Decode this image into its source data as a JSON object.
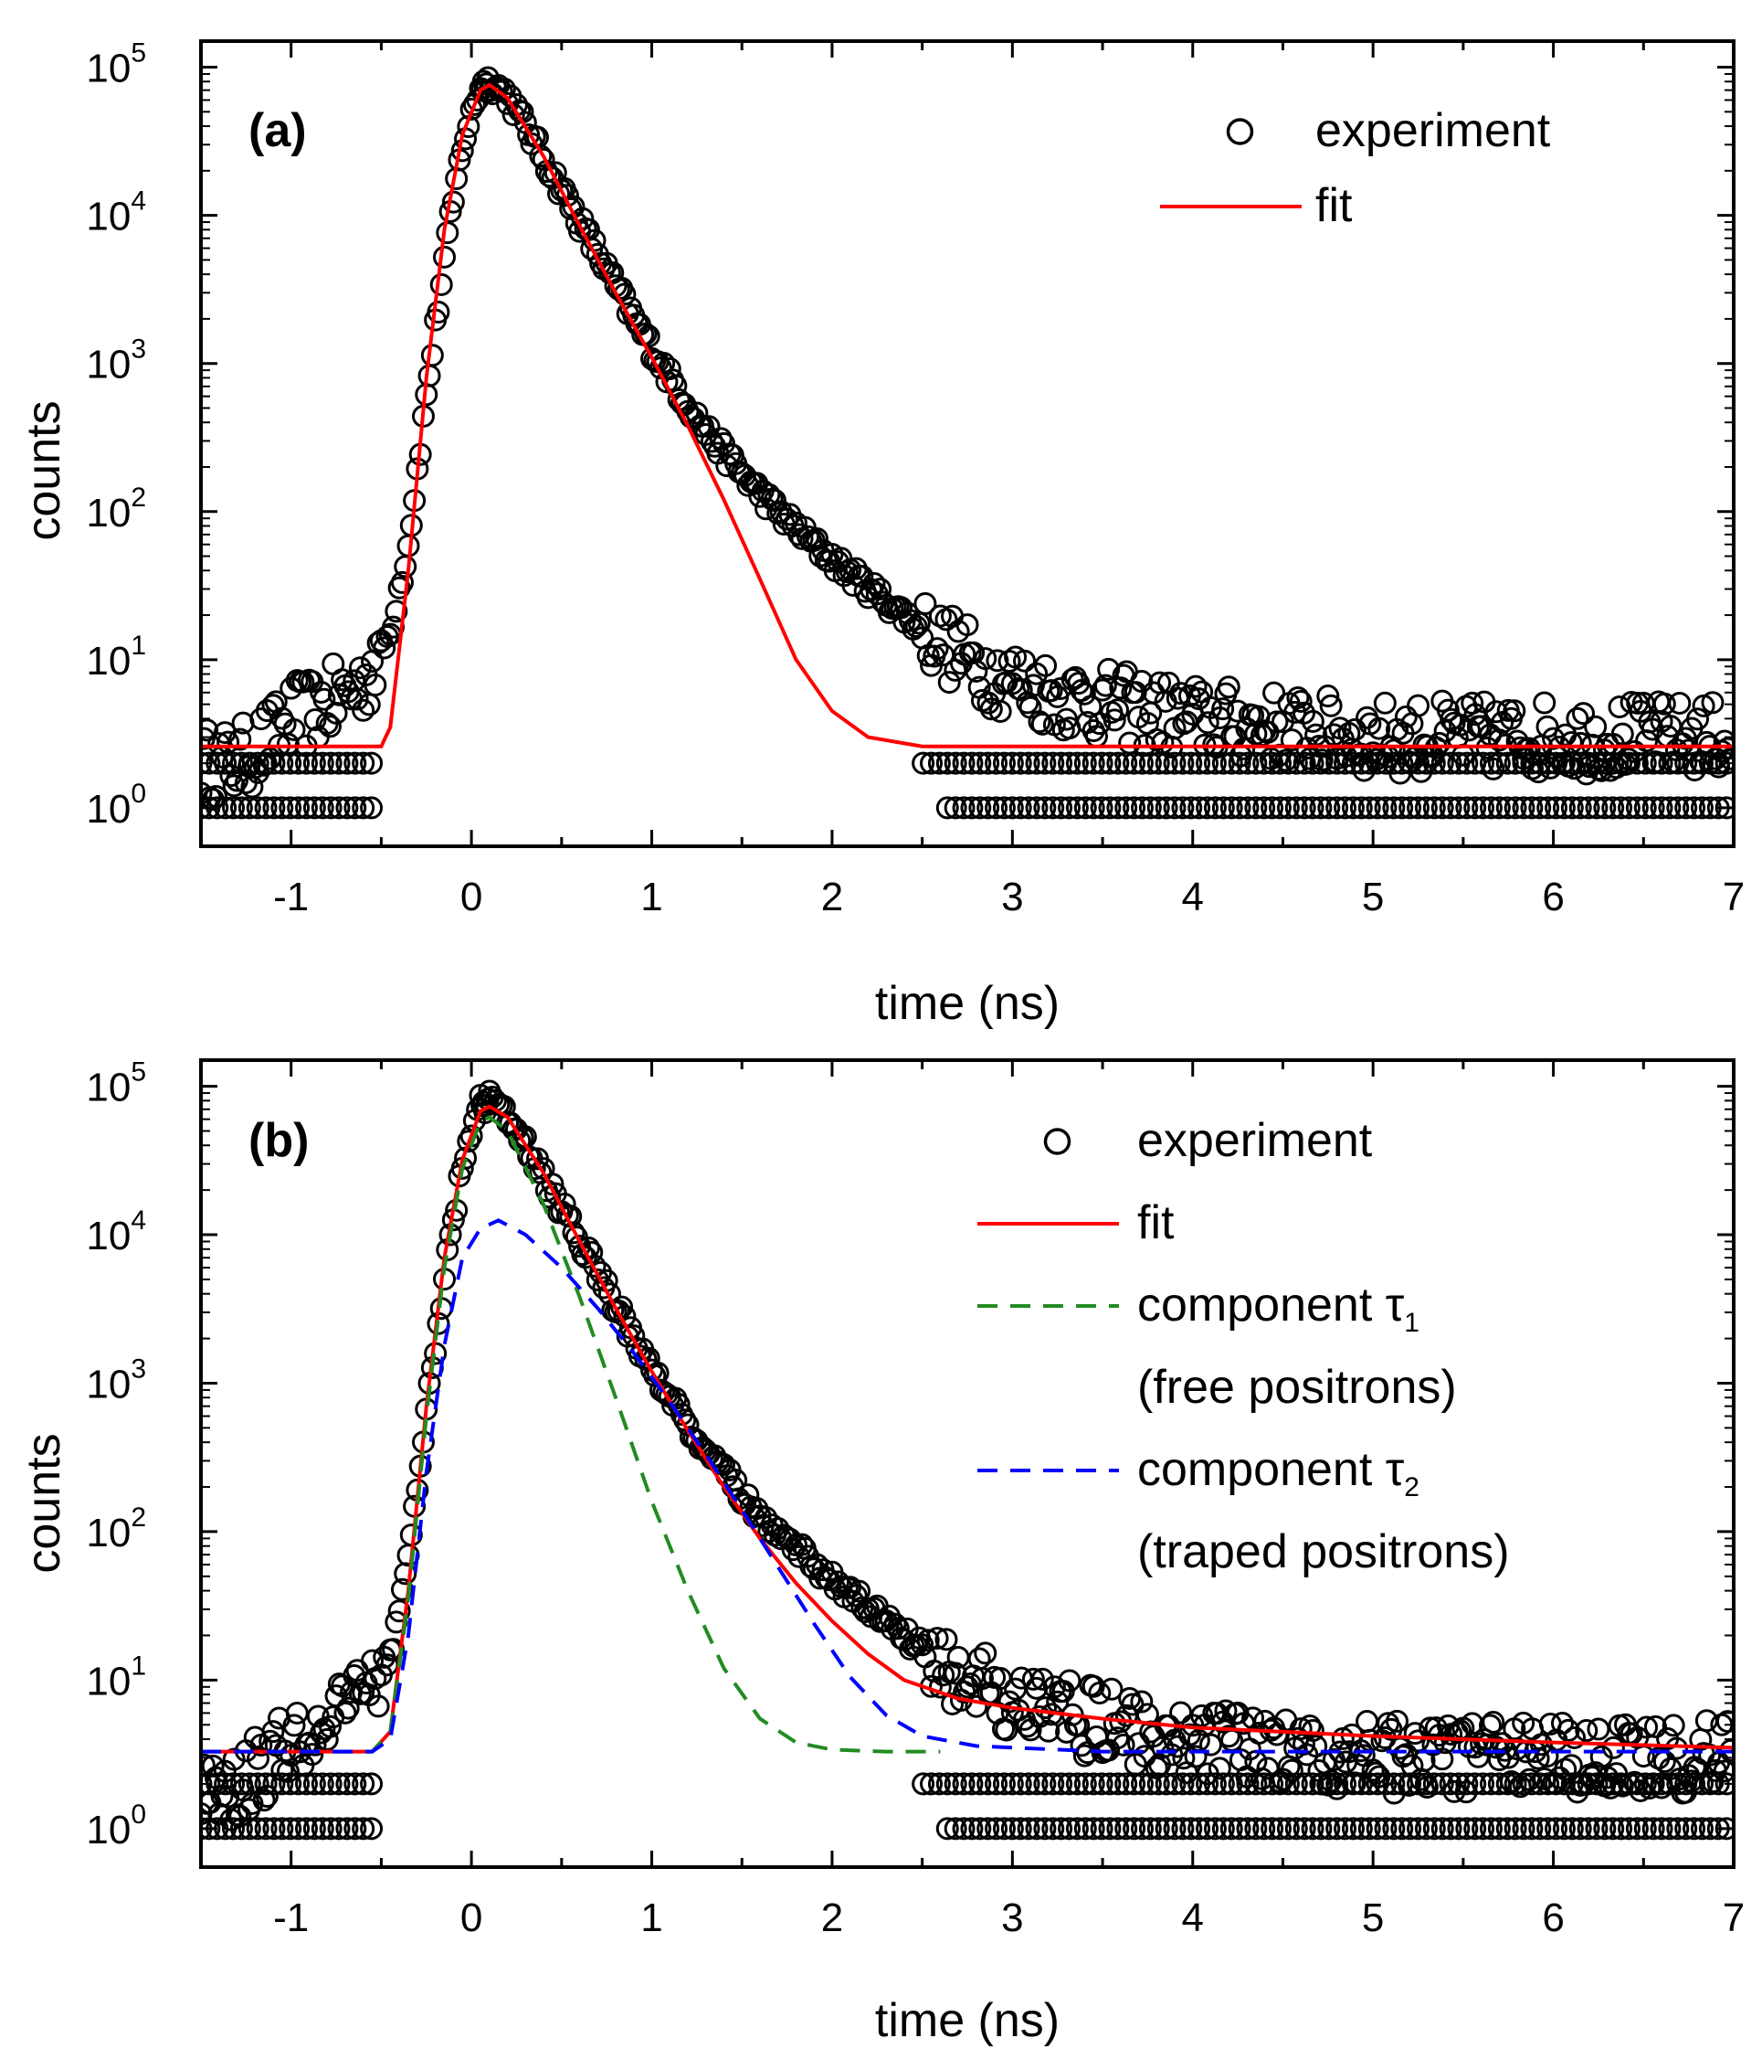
{
  "chart_data": [
    {
      "type": "scatter",
      "panel_label": "(a)",
      "xlabel": "time (ns)",
      "ylabel": "counts",
      "xlim": [
        -1.5,
        7
      ],
      "ylim": [
        0.55,
        150000
      ],
      "y_scale": "log",
      "x_ticks": [
        -1,
        0,
        1,
        2,
        3,
        4,
        5,
        6,
        7
      ],
      "y_tick_labels": [
        {
          "value": 1,
          "base": "10",
          "exp": "0"
        },
        {
          "value": 10,
          "base": "10",
          "exp": "1"
        },
        {
          "value": 100,
          "base": "10",
          "exp": "2"
        },
        {
          "value": 1000,
          "base": "10",
          "exp": "3"
        },
        {
          "value": 10000,
          "base": "10",
          "exp": "4"
        },
        {
          "value": 100000,
          "base": "10",
          "exp": "5"
        }
      ],
      "legend": {
        "position": "top-right",
        "entries": [
          {
            "text": "experiment",
            "marker": "open-circle",
            "color": "#000000"
          },
          {
            "text": "fit",
            "line": "solid",
            "color": "#ff0000"
          }
        ]
      },
      "series": [
        {
          "name": "experiment",
          "color": "#000000",
          "points": [
            {
              "x": -1.5,
              "y": 2
            },
            {
              "x": -1.3,
              "y": 2
            },
            {
              "x": -1.1,
              "y": 3
            },
            {
              "x": -1.0,
              "y": 4
            },
            {
              "x": -0.8,
              "y": 5
            },
            {
              "x": -0.6,
              "y": 7
            },
            {
              "x": -0.45,
              "y": 15
            },
            {
              "x": -0.35,
              "y": 60
            },
            {
              "x": -0.25,
              "y": 600
            },
            {
              "x": -0.15,
              "y": 5000
            },
            {
              "x": -0.05,
              "y": 30000
            },
            {
              "x": 0.05,
              "y": 75000
            },
            {
              "x": 0.1,
              "y": 80000
            },
            {
              "x": 0.2,
              "y": 65000
            },
            {
              "x": 0.3,
              "y": 40000
            },
            {
              "x": 0.5,
              "y": 15000
            },
            {
              "x": 0.7,
              "y": 5500
            },
            {
              "x": 0.9,
              "y": 2000
            },
            {
              "x": 1.1,
              "y": 800
            },
            {
              "x": 1.3,
              "y": 350
            },
            {
              "x": 1.5,
              "y": 180
            },
            {
              "x": 1.7,
              "y": 100
            },
            {
              "x": 1.9,
              "y": 60
            },
            {
              "x": 2.1,
              "y": 38
            },
            {
              "x": 2.3,
              "y": 25
            },
            {
              "x": 2.5,
              "y": 16
            },
            {
              "x": 2.7,
              "y": 11
            },
            {
              "x": 2.9,
              "y": 8
            },
            {
              "x": 3.2,
              "y": 6
            },
            {
              "x": 3.5,
              "y": 5
            },
            {
              "x": 4.0,
              "y": 4
            },
            {
              "x": 4.5,
              "y": 3.5
            },
            {
              "x": 5.0,
              "y": 3
            },
            {
              "x": 5.5,
              "y": 3
            },
            {
              "x": 6.0,
              "y": 3
            },
            {
              "x": 6.5,
              "y": 3
            },
            {
              "x": 7.0,
              "y": 3
            }
          ]
        },
        {
          "name": "fit",
          "color": "#ff0000",
          "points": [
            {
              "x": -1.5,
              "y": 2.6
            },
            {
              "x": -0.5,
              "y": 2.6
            },
            {
              "x": -0.45,
              "y": 3.5
            },
            {
              "x": -0.35,
              "y": 40
            },
            {
              "x": -0.25,
              "y": 800
            },
            {
              "x": -0.15,
              "y": 8000
            },
            {
              "x": -0.05,
              "y": 35000
            },
            {
              "x": 0.05,
              "y": 70000
            },
            {
              "x": 0.1,
              "y": 76000
            },
            {
              "x": 0.2,
              "y": 62000
            },
            {
              "x": 0.4,
              "y": 25000
            },
            {
              "x": 0.6,
              "y": 8500
            },
            {
              "x": 0.8,
              "y": 3000
            },
            {
              "x": 1.0,
              "y": 1100
            },
            {
              "x": 1.2,
              "y": 380
            },
            {
              "x": 1.4,
              "y": 120
            },
            {
              "x": 1.6,
              "y": 35
            },
            {
              "x": 1.8,
              "y": 10
            },
            {
              "x": 2.0,
              "y": 4.5
            },
            {
              "x": 2.2,
              "y": 3
            },
            {
              "x": 2.5,
              "y": 2.6
            },
            {
              "x": 3.0,
              "y": 2.6
            },
            {
              "x": 7.0,
              "y": 2.6
            }
          ]
        }
      ]
    },
    {
      "type": "scatter",
      "panel_label": "(b)",
      "xlabel": "time (ns)",
      "ylabel": "counts",
      "xlim": [
        -1.5,
        7
      ],
      "ylim": [
        0.55,
        150000
      ],
      "y_scale": "log",
      "x_ticks": [
        -1,
        0,
        1,
        2,
        3,
        4,
        5,
        6,
        7
      ],
      "y_tick_labels": [
        {
          "value": 1,
          "base": "10",
          "exp": "0"
        },
        {
          "value": 10,
          "base": "10",
          "exp": "1"
        },
        {
          "value": 100,
          "base": "10",
          "exp": "2"
        },
        {
          "value": 1000,
          "base": "10",
          "exp": "3"
        },
        {
          "value": 10000,
          "base": "10",
          "exp": "4"
        },
        {
          "value": 100000,
          "base": "10",
          "exp": "5"
        }
      ],
      "legend": {
        "position": "top-right",
        "entries": [
          {
            "text": "experiment",
            "marker": "open-circle",
            "color": "#000000"
          },
          {
            "text": "fit",
            "line": "solid",
            "color": "#ff0000"
          },
          {
            "text": "component τ",
            "sub": "1",
            "line": "dashed",
            "color": "#228b22"
          },
          {
            "text": "(free positrons)",
            "line": "none",
            "color": "#000000"
          },
          {
            "text": "component τ",
            "sub": "2",
            "line": "dashed",
            "color": "#0000ff"
          },
          {
            "text": "(traped positrons)",
            "line": "none",
            "color": "#000000"
          }
        ]
      },
      "series": [
        {
          "name": "experiment",
          "color": "#000000",
          "points": [
            {
              "x": -1.5,
              "y": 2
            },
            {
              "x": -1.3,
              "y": 2
            },
            {
              "x": -1.1,
              "y": 3
            },
            {
              "x": -1.0,
              "y": 4
            },
            {
              "x": -0.8,
              "y": 5
            },
            {
              "x": -0.6,
              "y": 7
            },
            {
              "x": -0.45,
              "y": 15
            },
            {
              "x": -0.35,
              "y": 60
            },
            {
              "x": -0.25,
              "y": 600
            },
            {
              "x": -0.15,
              "y": 5000
            },
            {
              "x": -0.05,
              "y": 30000
            },
            {
              "x": 0.05,
              "y": 75000
            },
            {
              "x": 0.1,
              "y": 80000
            },
            {
              "x": 0.2,
              "y": 65000
            },
            {
              "x": 0.3,
              "y": 40000
            },
            {
              "x": 0.5,
              "y": 15000
            },
            {
              "x": 0.7,
              "y": 5500
            },
            {
              "x": 0.9,
              "y": 2000
            },
            {
              "x": 1.1,
              "y": 800
            },
            {
              "x": 1.3,
              "y": 350
            },
            {
              "x": 1.5,
              "y": 180
            },
            {
              "x": 1.7,
              "y": 100
            },
            {
              "x": 1.9,
              "y": 60
            },
            {
              "x": 2.1,
              "y": 38
            },
            {
              "x": 2.3,
              "y": 25
            },
            {
              "x": 2.5,
              "y": 16
            },
            {
              "x": 2.7,
              "y": 11
            },
            {
              "x": 2.9,
              "y": 8
            },
            {
              "x": 3.2,
              "y": 6
            },
            {
              "x": 3.5,
              "y": 5
            },
            {
              "x": 4.0,
              "y": 4
            },
            {
              "x": 4.5,
              "y": 3.5
            },
            {
              "x": 5.0,
              "y": 3
            },
            {
              "x": 5.5,
              "y": 3
            },
            {
              "x": 6.0,
              "y": 3
            },
            {
              "x": 6.5,
              "y": 3
            },
            {
              "x": 7.0,
              "y": 3
            }
          ]
        },
        {
          "name": "fit",
          "color": "#ff0000",
          "points": [
            {
              "x": -1.5,
              "y": 3.3
            },
            {
              "x": -0.55,
              "y": 3.3
            },
            {
              "x": -0.45,
              "y": 4.5
            },
            {
              "x": -0.35,
              "y": 40
            },
            {
              "x": -0.25,
              "y": 700
            },
            {
              "x": -0.15,
              "y": 7000
            },
            {
              "x": -0.05,
              "y": 32000
            },
            {
              "x": 0.05,
              "y": 68000
            },
            {
              "x": 0.1,
              "y": 73000
            },
            {
              "x": 0.2,
              "y": 62000
            },
            {
              "x": 0.4,
              "y": 26000
            },
            {
              "x": 0.6,
              "y": 9000
            },
            {
              "x": 0.8,
              "y": 3200
            },
            {
              "x": 1.0,
              "y": 1200
            },
            {
              "x": 1.2,
              "y": 480
            },
            {
              "x": 1.4,
              "y": 200
            },
            {
              "x": 1.6,
              "y": 90
            },
            {
              "x": 1.8,
              "y": 45
            },
            {
              "x": 2.0,
              "y": 25
            },
            {
              "x": 2.2,
              "y": 15
            },
            {
              "x": 2.4,
              "y": 10
            },
            {
              "x": 2.7,
              "y": 7.5
            },
            {
              "x": 3.0,
              "y": 6.5
            },
            {
              "x": 3.5,
              "y": 5.5
            },
            {
              "x": 4.0,
              "y": 4.8
            },
            {
              "x": 5.0,
              "y": 4.2
            },
            {
              "x": 6.0,
              "y": 3.8
            },
            {
              "x": 7.0,
              "y": 3.5
            }
          ]
        },
        {
          "name": "component τ1",
          "color": "#228b22",
          "dash": true,
          "points": [
            {
              "x": -1.5,
              "y": 3.3
            },
            {
              "x": -0.55,
              "y": 3.3
            },
            {
              "x": -0.45,
              "y": 4.5
            },
            {
              "x": -0.35,
              "y": 35
            },
            {
              "x": -0.25,
              "y": 600
            },
            {
              "x": -0.15,
              "y": 6000
            },
            {
              "x": -0.05,
              "y": 28000
            },
            {
              "x": 0.05,
              "y": 58000
            },
            {
              "x": 0.1,
              "y": 62000
            },
            {
              "x": 0.2,
              "y": 50000
            },
            {
              "x": 0.4,
              "y": 16000
            },
            {
              "x": 0.6,
              "y": 3800
            },
            {
              "x": 0.8,
              "y": 800
            },
            {
              "x": 1.0,
              "y": 160
            },
            {
              "x": 1.2,
              "y": 40
            },
            {
              "x": 1.4,
              "y": 12
            },
            {
              "x": 1.6,
              "y": 5.5
            },
            {
              "x": 1.8,
              "y": 3.8
            },
            {
              "x": 2.0,
              "y": 3.4
            },
            {
              "x": 2.3,
              "y": 3.3
            },
            {
              "x": 2.6,
              "y": 3.3
            }
          ]
        },
        {
          "name": "component τ2",
          "color": "#0000ff",
          "dash": true,
          "points": [
            {
              "x": -1.5,
              "y": 3.3
            },
            {
              "x": -0.55,
              "y": 3.3
            },
            {
              "x": -0.45,
              "y": 4
            },
            {
              "x": -0.35,
              "y": 20
            },
            {
              "x": -0.25,
              "y": 250
            },
            {
              "x": -0.15,
              "y": 1800
            },
            {
              "x": -0.05,
              "y": 7000
            },
            {
              "x": 0.05,
              "y": 11000
            },
            {
              "x": 0.15,
              "y": 12500
            },
            {
              "x": 0.3,
              "y": 10000
            },
            {
              "x": 0.5,
              "y": 6000
            },
            {
              "x": 0.7,
              "y": 3200
            },
            {
              "x": 0.9,
              "y": 1600
            },
            {
              "x": 1.1,
              "y": 750
            },
            {
              "x": 1.3,
              "y": 330
            },
            {
              "x": 1.5,
              "y": 140
            },
            {
              "x": 1.7,
              "y": 58
            },
            {
              "x": 1.9,
              "y": 24
            },
            {
              "x": 2.1,
              "y": 10.5
            },
            {
              "x": 2.3,
              "y": 5.8
            },
            {
              "x": 2.5,
              "y": 4.2
            },
            {
              "x": 2.8,
              "y": 3.6
            },
            {
              "x": 3.5,
              "y": 3.3
            },
            {
              "x": 5.0,
              "y": 3.3
            },
            {
              "x": 7.0,
              "y": 3.3
            }
          ]
        }
      ]
    }
  ]
}
